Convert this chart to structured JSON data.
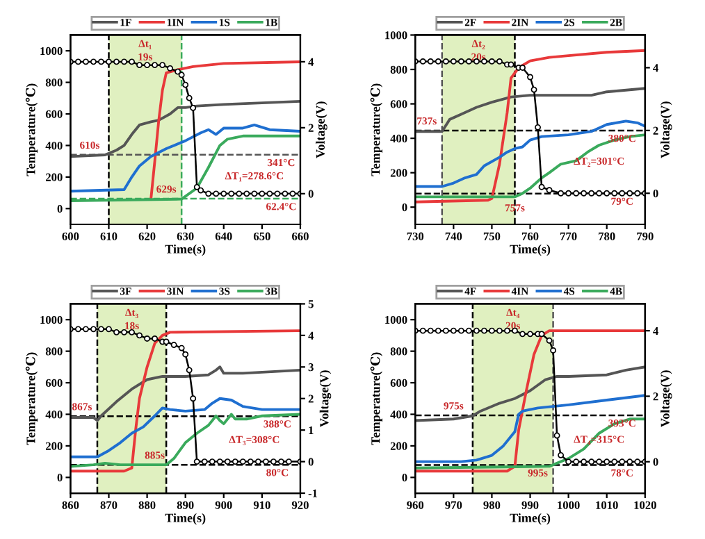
{
  "chart_data": [
    {
      "type": "line",
      "xlabel": "Time(s)",
      "ylabel": "Temperature(℃)",
      "y2label": "Voltage(V)",
      "xlim": [
        600,
        660
      ],
      "xticks": [
        600,
        610,
        620,
        630,
        640,
        650,
        660
      ],
      "ylim": [
        -100,
        1100
      ],
      "yticks": [
        0,
        200,
        400,
        600,
        800,
        1000
      ],
      "y2lim": [
        -0.93,
        4.81
      ],
      "y2ticks": [
        0,
        2,
        4
      ],
      "legend": "top",
      "series": [
        {
          "name": "1F",
          "color": "#555555",
          "x": [
            600,
            609,
            612,
            614,
            616,
            618,
            621,
            623,
            626,
            628,
            630,
            633,
            640,
            650,
            660
          ],
          "values": [
            330,
            340,
            370,
            400,
            470,
            530,
            550,
            560,
            600,
            640,
            640,
            650,
            660,
            670,
            680
          ]
        },
        {
          "name": "1IN",
          "color": "#e8393a",
          "x": [
            621,
            622,
            623,
            624,
            625,
            628,
            632,
            640,
            660
          ],
          "values": [
            60,
            300,
            550,
            750,
            860,
            880,
            900,
            920,
            930
          ]
        },
        {
          "name": "1S",
          "color": "#1f6fd0",
          "x": [
            600,
            614,
            616,
            618,
            621,
            625,
            630,
            634,
            636,
            638,
            640,
            645,
            648,
            652,
            660
          ],
          "values": [
            110,
            120,
            200,
            270,
            330,
            380,
            430,
            480,
            500,
            470,
            510,
            510,
            530,
            500,
            490
          ]
        },
        {
          "name": "1B",
          "color": "#3aaa5c",
          "x": [
            600,
            629,
            633,
            636,
            639,
            641,
            645,
            660
          ],
          "values": [
            50,
            60,
            130,
            260,
            400,
            440,
            460,
            460
          ]
        },
        {
          "color": "#000000",
          "axis": "y2",
          "marker": "circle",
          "x": [
            600,
            602,
            604,
            606,
            608,
            610,
            612,
            614,
            616,
            618,
            620,
            622,
            624,
            626,
            628,
            629,
            630,
            631,
            632,
            633,
            634,
            636,
            638,
            640,
            642,
            644,
            646,
            648,
            650,
            652,
            654,
            656,
            658,
            660
          ],
          "values": [
            4.0,
            4.0,
            4.0,
            4.0,
            4.0,
            4.0,
            4.0,
            4.0,
            4.0,
            3.9,
            3.9,
            3.9,
            3.9,
            3.8,
            3.7,
            3.6,
            3.3,
            2.9,
            2.6,
            0.2,
            0.1,
            0.0,
            0.0,
            0.0,
            0.0,
            0.0,
            0.0,
            0.0,
            0.0,
            0.0,
            0.0,
            0.0,
            0.0,
            0.0
          ]
        }
      ],
      "bands": [
        {
          "axis": "x",
          "from": 610,
          "to": 629,
          "color": "#e0f0c0"
        }
      ],
      "ref_lines": [
        {
          "axis": "x",
          "value": 610,
          "color": "#000000",
          "line_style": "dashed"
        },
        {
          "axis": "x",
          "value": 629,
          "color": "#3aaa5c",
          "line_style": "dashed"
        },
        {
          "axis": "y",
          "value": 341,
          "color": "#555555",
          "line_style": "dashed"
        },
        {
          "axis": "y",
          "value": 62.4,
          "color": "#3aaa5c",
          "line_style": "dashed"
        }
      ],
      "annotations": [
        "Δt₁",
        "19s",
        "ΔT₁=278.6°C",
        {
          "text": "610s",
          "x": 605,
          "y": 341
        },
        {
          "text": "629s",
          "x": 625,
          "y": 62.4
        },
        {
          "text": "341°C",
          "x": 655,
          "y": 341
        },
        {
          "text": "62.4°C",
          "x": 655,
          "y": 62.4
        }
      ]
    },
    {
      "type": "line",
      "xlabel": "Time(s)",
      "ylabel": "Temperature(℃)",
      "y2label": "Voltage(V)",
      "xlim": [
        730,
        790
      ],
      "xticks": [
        730,
        740,
        750,
        760,
        770,
        780,
        790
      ],
      "ylim": [
        -100,
        1000
      ],
      "yticks": [
        0,
        200,
        400,
        600,
        800,
        1000
      ],
      "y2lim": [
        -0.99,
        5.04
      ],
      "y2ticks": [
        0,
        2,
        4
      ],
      "legend": "top",
      "series": [
        {
          "name": "2F",
          "color": "#555555",
          "x": [
            730,
            737,
            739,
            742,
            746,
            750,
            755,
            760,
            770,
            776,
            780,
            790
          ],
          "values": [
            440,
            440,
            510,
            540,
            580,
            610,
            640,
            650,
            650,
            650,
            670,
            690
          ]
        },
        {
          "name": "2IN",
          "color": "#e8393a",
          "x": [
            730,
            749,
            750,
            752,
            754,
            755,
            757,
            760,
            765,
            770,
            780,
            790
          ],
          "values": [
            30,
            40,
            50,
            250,
            550,
            750,
            810,
            850,
            870,
            880,
            900,
            910
          ]
        },
        {
          "name": "2S",
          "color": "#1f6fd0",
          "x": [
            730,
            737,
            740,
            743,
            746,
            748,
            752,
            754,
            756,
            758,
            760,
            763,
            770,
            776,
            780,
            785,
            788,
            790
          ],
          "values": [
            120,
            120,
            140,
            170,
            190,
            240,
            290,
            320,
            340,
            350,
            390,
            410,
            420,
            440,
            480,
            500,
            490,
            470
          ]
        },
        {
          "name": "2B",
          "color": "#3aaa5c",
          "x": [
            730,
            756,
            758,
            760,
            763,
            765,
            768,
            772,
            775,
            778,
            782,
            786,
            790
          ],
          "values": [
            60,
            60,
            80,
            110,
            170,
            200,
            250,
            270,
            320,
            360,
            390,
            410,
            420
          ]
        },
        {
          "color": "#000000",
          "axis": "y2",
          "marker": "circle",
          "x": [
            730,
            732,
            734,
            736,
            738,
            740,
            742,
            744,
            746,
            748,
            750,
            752,
            754,
            755,
            757,
            758,
            760,
            761,
            762,
            763,
            765,
            768,
            770,
            772,
            774,
            776,
            778,
            780,
            782,
            784,
            786,
            788,
            790
          ],
          "values": [
            4.2,
            4.2,
            4.2,
            4.2,
            4.2,
            4.2,
            4.2,
            4.2,
            4.2,
            4.2,
            4.2,
            4.2,
            4.1,
            4.1,
            4.0,
            4.0,
            3.7,
            3.3,
            2.1,
            0.2,
            0.1,
            0.0,
            0.0,
            0.0,
            0.0,
            0.0,
            0.0,
            0.0,
            0.0,
            0.0,
            0.0,
            0.0,
            0.0
          ]
        }
      ],
      "bands": [
        {
          "axis": "x",
          "from": 737,
          "to": 756,
          "color": "#e0f0c0"
        }
      ],
      "ref_lines": [
        {
          "axis": "x",
          "value": 737,
          "color": "#555555",
          "line_style": "dashed"
        },
        {
          "axis": "x",
          "value": 756,
          "color": "#000000",
          "line_style": "dashed"
        },
        {
          "axis": "y",
          "value": 445,
          "color": "#000000",
          "line_style": "dashed"
        },
        {
          "axis": "y",
          "value": 79,
          "color": "#000000",
          "line_style": "dashed"
        }
      ],
      "annotations": [
        "Δt₂",
        "20s",
        "ΔT₂=301°C",
        {
          "text": "737s",
          "x": 733,
          "y": 445
        },
        {
          "text": "757s",
          "x": 756,
          "y": -60
        },
        {
          "text": "380°C",
          "x": 784,
          "y": 445
        },
        {
          "text": "79°C",
          "x": 784,
          "y": 79
        }
      ]
    },
    {
      "type": "line",
      "xlabel": "Time(s)",
      "ylabel": "Temperature(℃)",
      "y2label": "Voltage(V)",
      "xlim": [
        860,
        920
      ],
      "xticks": [
        860,
        870,
        880,
        890,
        900,
        910,
        920
      ],
      "ylim": [
        -100,
        1100
      ],
      "yticks": [
        0,
        200,
        400,
        600,
        800,
        1000
      ],
      "y2lim": [
        -1,
        5
      ],
      "y2ticks": [
        -1,
        0,
        1,
        2,
        3,
        4,
        5
      ],
      "legend": "top",
      "series": [
        {
          "name": "3F",
          "color": "#555555",
          "x": [
            860,
            866,
            867,
            868,
            872,
            876,
            880,
            884,
            890,
            896,
            898,
            899,
            900,
            905,
            920
          ],
          "values": [
            380,
            380,
            360,
            390,
            480,
            560,
            620,
            640,
            640,
            650,
            680,
            700,
            660,
            660,
            680
          ]
        },
        {
          "name": "3IN",
          "color": "#e8393a",
          "x": [
            860,
            874,
            876,
            877,
            878,
            880,
            882,
            884,
            886,
            920
          ],
          "values": [
            40,
            40,
            60,
            300,
            500,
            700,
            850,
            900,
            920,
            930
          ]
        },
        {
          "name": "3S",
          "color": "#1f6fd0",
          "x": [
            860,
            867,
            870,
            873,
            876,
            879,
            882,
            884,
            886,
            890,
            895,
            897,
            899,
            902,
            905,
            910,
            920
          ],
          "values": [
            130,
            130,
            170,
            220,
            280,
            320,
            390,
            440,
            430,
            420,
            430,
            470,
            500,
            490,
            450,
            430,
            430
          ]
        },
        {
          "name": "3B",
          "color": "#3aaa5c",
          "x": [
            860,
            866,
            869,
            873,
            880,
            885,
            887,
            890,
            893,
            896,
            898,
            899,
            900,
            902,
            903,
            906,
            910,
            920
          ],
          "values": [
            70,
            80,
            90,
            80,
            80,
            80,
            120,
            220,
            280,
            330,
            390,
            360,
            340,
            400,
            370,
            370,
            390,
            400
          ]
        },
        {
          "color": "#000000",
          "axis": "y2",
          "marker": "circle",
          "x": [
            860,
            862,
            864,
            866,
            868,
            870,
            872,
            874,
            876,
            878,
            880,
            882,
            884,
            885,
            887,
            889,
            890,
            891,
            892,
            893,
            895,
            897,
            899,
            901,
            903,
            905,
            907,
            909,
            911,
            913,
            915,
            917,
            920
          ],
          "values": [
            4.2,
            4.2,
            4.2,
            4.2,
            4.2,
            4.2,
            4.1,
            4.1,
            4.1,
            4.0,
            3.9,
            3.9,
            3.8,
            3.8,
            3.7,
            3.6,
            3.4,
            2.9,
            2.0,
            0.0,
            0.0,
            0.0,
            0.0,
            0.0,
            0.0,
            0.0,
            0.0,
            0.0,
            0.0,
            0.0,
            0.0,
            0.0,
            0.0
          ]
        }
      ],
      "bands": [
        {
          "axis": "x",
          "from": 867,
          "to": 885,
          "color": "#e0f0c0"
        }
      ],
      "ref_lines": [
        {
          "axis": "x",
          "value": 867,
          "color": "#000000",
          "line_style": "dashed"
        },
        {
          "axis": "x",
          "value": 885,
          "color": "#000000",
          "line_style": "dashed"
        },
        {
          "axis": "y",
          "value": 388,
          "color": "#000000",
          "line_style": "dashed"
        },
        {
          "axis": "y",
          "value": 80,
          "color": "#000000",
          "line_style": "dashed"
        }
      ],
      "annotations": [
        "Δt₃",
        "18s",
        "ΔT₃=308°C",
        {
          "text": "867s",
          "x": 863,
          "y": 388
        },
        {
          "text": "885s",
          "x": 882,
          "y": 80
        },
        {
          "text": "388°C",
          "x": 914,
          "y": 388
        },
        {
          "text": "80°C",
          "x": 914,
          "y": 80
        }
      ]
    },
    {
      "type": "line",
      "xlabel": "Time(s)",
      "ylabel": "Temperature(℃)",
      "y2label": "Voltage(V)",
      "xlim": [
        960,
        1020
      ],
      "xticks": [
        960,
        970,
        980,
        990,
        1000,
        1010,
        1020
      ],
      "ylim": [
        -100,
        1100
      ],
      "yticks": [
        0,
        200,
        400,
        600,
        800,
        1000
      ],
      "y2lim": [
        -0.96,
        4.82
      ],
      "y2ticks": [
        0,
        2,
        4
      ],
      "legend": "top",
      "series": [
        {
          "name": "4F",
          "color": "#555555",
          "x": [
            960,
            970,
            975,
            977,
            982,
            986,
            990,
            994,
            997,
            1000,
            1010,
            1015,
            1020
          ],
          "values": [
            360,
            370,
            390,
            420,
            470,
            500,
            550,
            620,
            640,
            640,
            650,
            680,
            700
          ]
        },
        {
          "name": "4IN",
          "color": "#e8393a",
          "x": [
            960,
            984,
            986,
            987,
            989,
            991,
            993,
            995,
            1000,
            1020
          ],
          "values": [
            40,
            40,
            70,
            300,
            550,
            780,
            900,
            930,
            930,
            930
          ]
        },
        {
          "name": "4S",
          "color": "#1f6fd0",
          "x": [
            960,
            972,
            976,
            980,
            983,
            985,
            986,
            987,
            988,
            992,
            996,
            1000,
            1010,
            1020
          ],
          "values": [
            100,
            100,
            110,
            140,
            200,
            260,
            290,
            400,
            420,
            440,
            450,
            460,
            490,
            520
          ]
        },
        {
          "name": "4B",
          "color": "#3aaa5c",
          "x": [
            960,
            995,
            997,
            1000,
            1004,
            1008,
            1012,
            1016,
            1020
          ],
          "values": [
            60,
            70,
            90,
            120,
            180,
            280,
            340,
            370,
            370
          ]
        },
        {
          "color": "#000000",
          "axis": "y2",
          "marker": "circle",
          "x": [
            960,
            962,
            964,
            966,
            968,
            970,
            972,
            974,
            976,
            978,
            980,
            982,
            984,
            986,
            988,
            990,
            992,
            993,
            995,
            996,
            997,
            998,
            1000,
            1002,
            1004,
            1006,
            1008,
            1010,
            1012,
            1014,
            1016,
            1018,
            1020
          ],
          "values": [
            4.0,
            4.0,
            4.0,
            4.0,
            4.0,
            4.0,
            4.0,
            4.0,
            4.0,
            4.0,
            4.0,
            4.0,
            4.0,
            4.0,
            3.9,
            3.9,
            3.9,
            3.9,
            3.7,
            3.4,
            0.8,
            0.2,
            0.0,
            0.0,
            0.0,
            0.0,
            0.0,
            0.0,
            0.0,
            0.0,
            0.0,
            0.0,
            0.0
          ]
        }
      ],
      "bands": [
        {
          "axis": "x",
          "from": 975,
          "to": 996,
          "color": "#e0f0c0"
        }
      ],
      "ref_lines": [
        {
          "axis": "x",
          "value": 975,
          "color": "#000000",
          "line_style": "dashed"
        },
        {
          "axis": "x",
          "value": 996,
          "color": "#555555",
          "line_style": "dashed"
        },
        {
          "axis": "y",
          "value": 393,
          "color": "#000000",
          "line_style": "dashed"
        },
        {
          "axis": "y",
          "value": 78,
          "color": "#000000",
          "line_style": "dashed"
        }
      ],
      "annotations": [
        "Δt₄",
        "20s",
        "ΔT₄=315°C",
        {
          "text": "975s",
          "x": 970,
          "y": 393
        },
        {
          "text": "995s",
          "x": 992,
          "y": 78
        },
        {
          "text": "393°C",
          "x": 1014,
          "y": 393
        },
        {
          "text": "78°C",
          "x": 1014,
          "y": 78
        }
      ]
    }
  ]
}
